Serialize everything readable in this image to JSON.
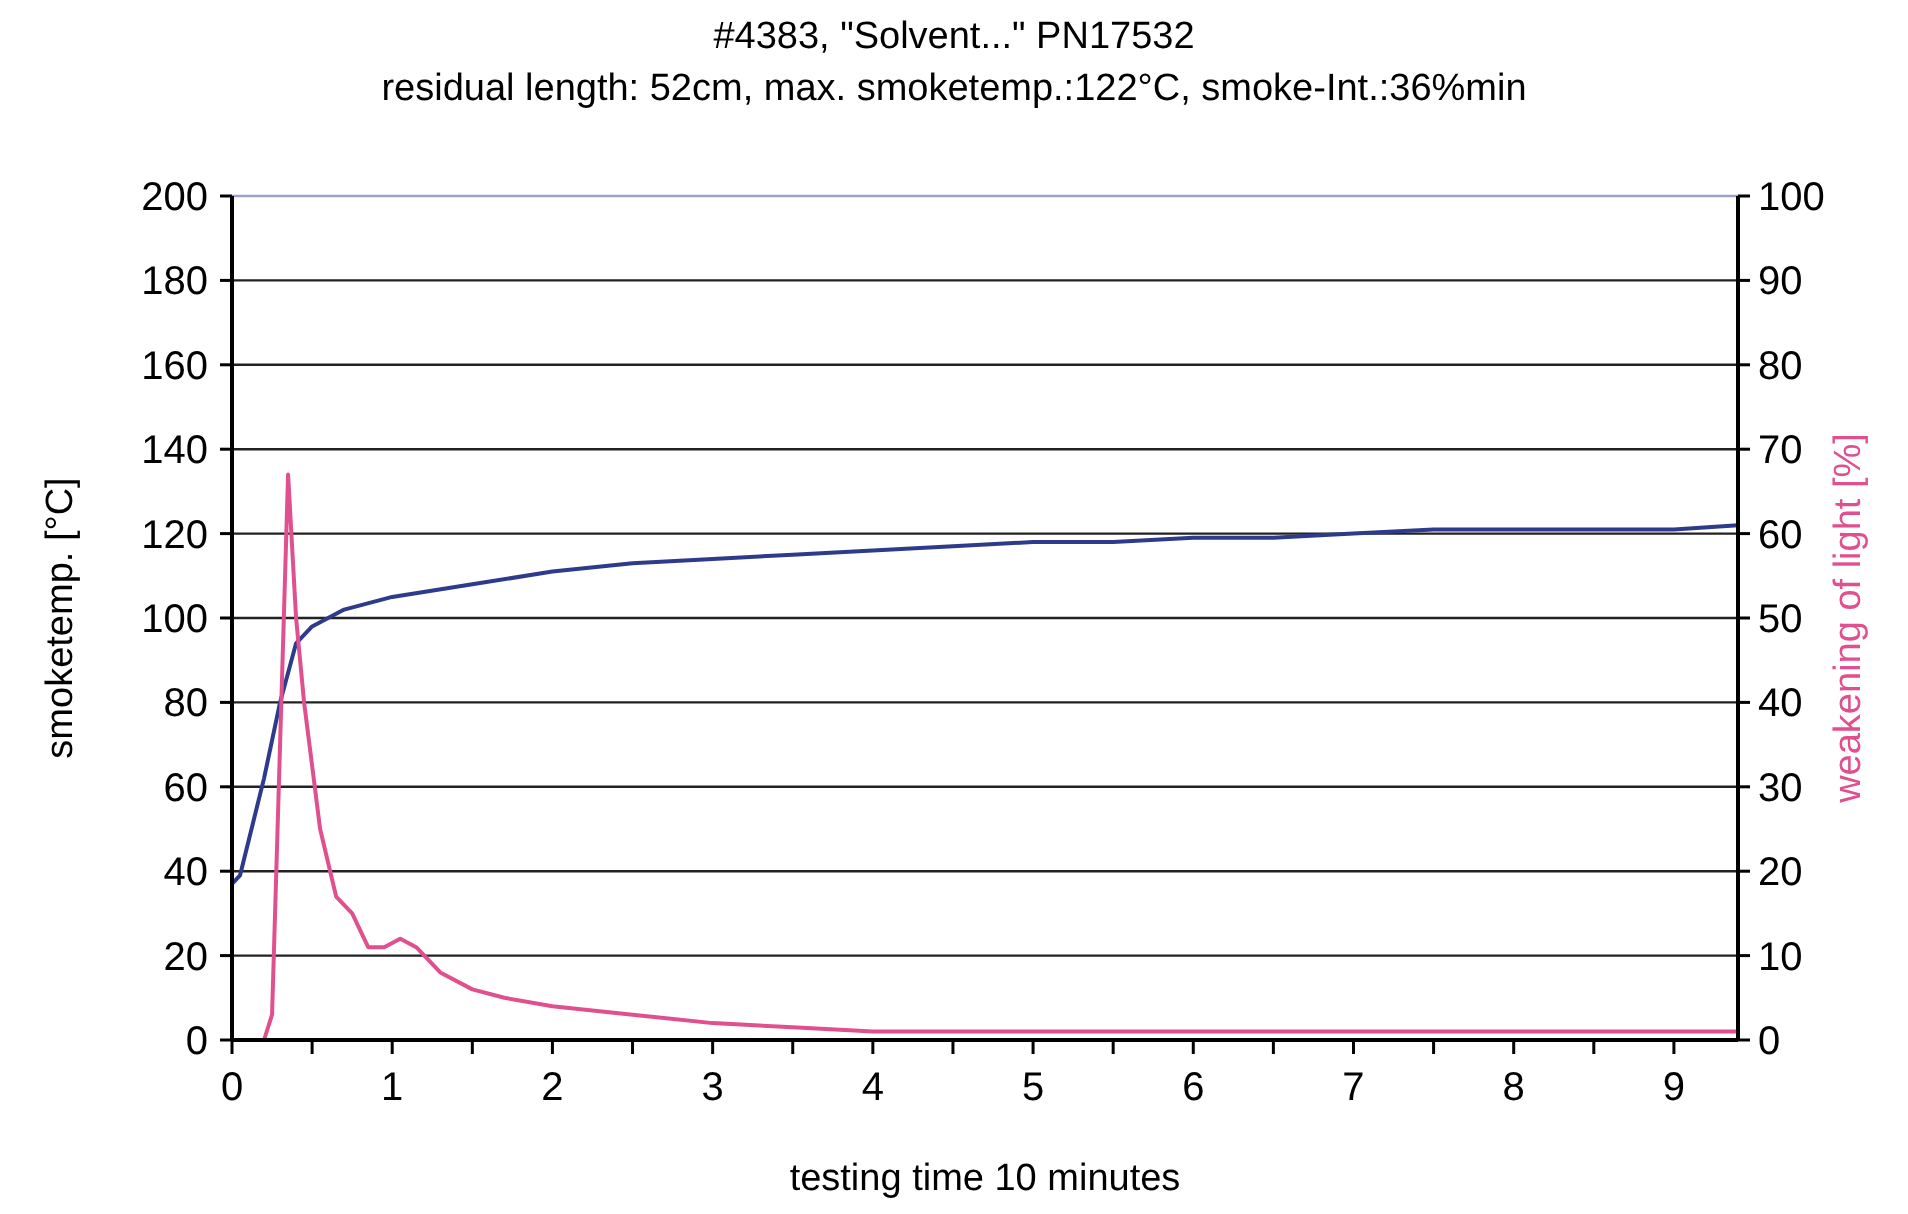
{
  "chart_data": {
    "type": "line",
    "title": "#4383, \"Solvent...\" PN17532",
    "subtitle": "residual length: 52cm, max. smoketemp.:122°C, smoke-Int.:36%min",
    "xlabel": "testing time 10 minutes",
    "ylabel": "smoketemp. [°C]",
    "y2label": "weakening of light [%]",
    "xlim": [
      0,
      9.4
    ],
    "ylim": [
      0,
      200
    ],
    "y2lim": [
      0,
      100
    ],
    "xticks": [
      0,
      {
        "value": 0.5,
        "label": null
      },
      1,
      {
        "value": 1.5,
        "label": null
      },
      2,
      {
        "value": 2.5,
        "label": null
      },
      3,
      {
        "value": 3.5,
        "label": null
      },
      4,
      {
        "value": 4.5,
        "label": null
      },
      5,
      {
        "value": 5.5,
        "label": null
      },
      6,
      {
        "value": 6.5,
        "label": null
      },
      7,
      {
        "value": 7.5,
        "label": null
      },
      8,
      {
        "value": 8.5,
        "label": null
      },
      9
    ],
    "yticks": [
      0,
      20,
      40,
      60,
      80,
      100,
      120,
      140,
      160,
      180,
      200
    ],
    "y2ticks": [
      0,
      10,
      20,
      30,
      40,
      50,
      60,
      70,
      80,
      90,
      100
    ],
    "grid": "y",
    "marker": "none",
    "line_style": "solid",
    "series": [
      {
        "color": "#2e3a8c",
        "x": [
          0,
          0.05,
          0.2,
          0.3,
          0.4,
          0.5,
          0.7,
          1,
          1.5,
          2,
          2.5,
          3,
          3.5,
          4,
          4.5,
          5,
          5.5,
          6,
          6.5,
          7,
          7.5,
          8,
          8.5,
          9,
          9.4
        ],
        "values": [
          37,
          39,
          62,
          80,
          94,
          98,
          102,
          105,
          108,
          111,
          113,
          114,
          115,
          116,
          117,
          118,
          118,
          119,
          119,
          120,
          121,
          121,
          121,
          121,
          122
        ]
      },
      {
        "color": "#e0508f",
        "axis": "y2",
        "x": [
          0,
          0.2,
          0.25,
          0.35,
          0.4,
          0.45,
          0.55,
          0.65,
          0.75,
          0.85,
          0.95,
          1.05,
          1.15,
          1.3,
          1.5,
          1.7,
          2,
          2.5,
          3,
          3.5,
          4,
          5,
          6,
          7,
          8,
          9,
          9.4
        ],
        "values": [
          0,
          0,
          3,
          67,
          50,
          40,
          25,
          17,
          15,
          11,
          11,
          12,
          11,
          8,
          6,
          5,
          4,
          3,
          2,
          1.5,
          1,
          1,
          1,
          1,
          1,
          1,
          1
        ]
      }
    ]
  }
}
